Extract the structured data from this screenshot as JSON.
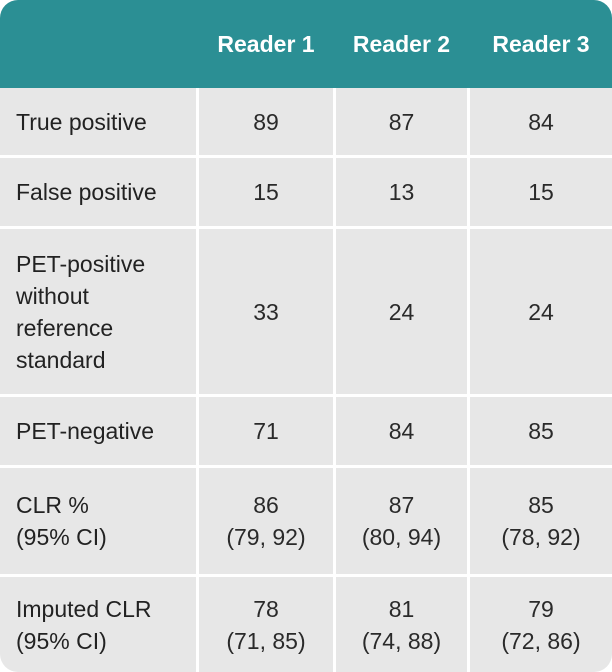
{
  "table": {
    "headers": [
      "Reader 1",
      "Reader 2",
      "Reader 3"
    ],
    "rows": [
      {
        "label": "True positive",
        "values": [
          "89",
          "87",
          "84"
        ]
      },
      {
        "label": "False positive",
        "values": [
          "15",
          "13",
          "15"
        ]
      },
      {
        "label": "PET-positive without reference standard",
        "values": [
          "33",
          "24",
          "24"
        ]
      },
      {
        "label": "PET-negative",
        "values": [
          "71",
          "84",
          "85"
        ]
      },
      {
        "label": "CLR % (95% CI)",
        "values": [
          "86",
          "87",
          "85"
        ],
        "ci": [
          "(79, 92)",
          "(80, 94)",
          "(78, 92)"
        ]
      },
      {
        "label": "Imputed CLR (95% CI)",
        "values": [
          "78",
          "81",
          "79"
        ],
        "ci": [
          "(71, 85)",
          "(74, 88)",
          "(72, 86)"
        ]
      }
    ]
  },
  "colors": {
    "header_bg": "#2b8f94",
    "cell_bg": "#e7e7e7",
    "grid": "#ffffff"
  }
}
